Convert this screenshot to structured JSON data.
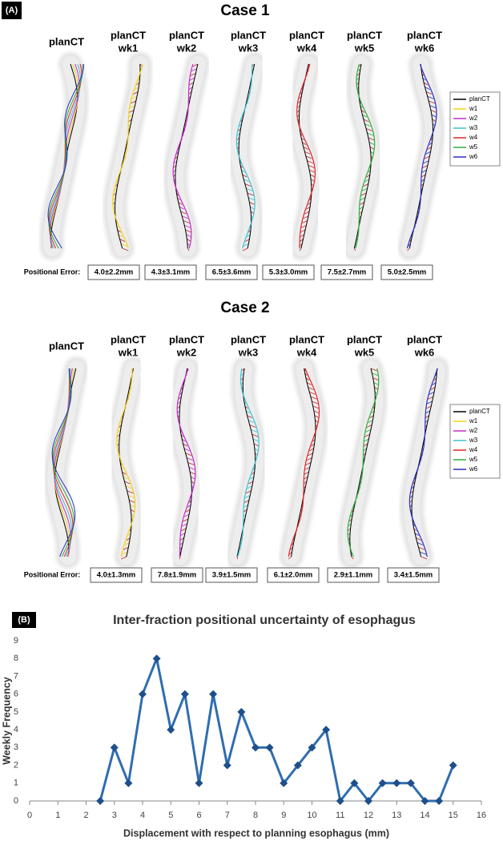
{
  "panel_a": {
    "label": "(A)",
    "case_1": {
      "title": "Case 1",
      "headers": [
        [
          "planCT"
        ],
        [
          "planCT",
          "wk1"
        ],
        [
          "planCT",
          "wk2"
        ],
        [
          "planCT",
          "wk3"
        ],
        [
          "planCT",
          "wk4"
        ],
        [
          "planCT",
          "wk5"
        ],
        [
          "planCT",
          "wk6"
        ]
      ],
      "legend": [
        {
          "name": "planCT",
          "color": "#000000"
        },
        {
          "name": "w1",
          "color": "#f2d21b"
        },
        {
          "name": "w2",
          "color": "#c42ac8"
        },
        {
          "name": "w3",
          "color": "#3cc2cf"
        },
        {
          "name": "w4",
          "color": "#e0262a"
        },
        {
          "name": "w5",
          "color": "#2fae3a"
        },
        {
          "name": "w6",
          "color": "#2a2ec0"
        }
      ],
      "error_label": "Positional Error:",
      "errors": [
        "4.0±2.2mm",
        "4.3±3.1mm",
        "6.5±3.6mm",
        "5.3±3.0mm",
        "7.5±2.7mm",
        "5.0±2.5mm"
      ]
    },
    "case_2": {
      "title": "Case 2",
      "headers": [
        [
          "planCT"
        ],
        [
          "planCT",
          "wk1"
        ],
        [
          "planCT",
          "wk2"
        ],
        [
          "planCT",
          "wk3"
        ],
        [
          "planCT",
          "wk4"
        ],
        [
          "planCT",
          "wk5"
        ],
        [
          "planCT",
          "wk6"
        ]
      ],
      "legend": [
        {
          "name": "planCT",
          "color": "#000000"
        },
        {
          "name": "w1",
          "color": "#f2d21b"
        },
        {
          "name": "w2",
          "color": "#c42ac8"
        },
        {
          "name": "w3",
          "color": "#3cc2cf"
        },
        {
          "name": "w4",
          "color": "#e0262a"
        },
        {
          "name": "w5",
          "color": "#2fae3a"
        },
        {
          "name": "w6",
          "color": "#2a2ec0"
        }
      ],
      "error_label": "Positional Error:",
      "errors": [
        "4.0±1.3mm",
        "7.8±1.9mm",
        "3.9±1.5mm",
        "6.1±2.0mm",
        "2.9±1.1mm",
        "3.4±1.5mm"
      ]
    }
  },
  "chart_data": {
    "type": "line",
    "panel_label": "(B)",
    "title": "Inter-fraction positional uncertainty of esophagus",
    "x_label": "Displacement with respect to planning esophagus (mm)",
    "y_label": "Weekly Frequency",
    "x": [
      2.5,
      3,
      3.5,
      4,
      4.5,
      5,
      5.5,
      6,
      6.5,
      7,
      7.5,
      8,
      8.5,
      9,
      9.5,
      10,
      10.5,
      11,
      11.5,
      12,
      12.5,
      13,
      13.5,
      14,
      14.5,
      15
    ],
    "values": [
      0,
      3,
      1,
      6,
      8,
      4,
      6,
      1,
      6,
      2,
      5,
      3,
      3,
      1,
      2,
      3,
      4,
      0,
      1,
      0,
      1,
      1,
      1,
      0,
      0,
      2
    ],
    "color": "#2f6db0",
    "xlim": [
      0,
      16
    ],
    "xticks": [
      0,
      1,
      2,
      3,
      4,
      5,
      6,
      7,
      8,
      9,
      10,
      11,
      12,
      13,
      14,
      15,
      16
    ],
    "ylim": [
      0,
      9
    ],
    "yticks": [
      0,
      1,
      2,
      3,
      4,
      5,
      6,
      7,
      8,
      9
    ],
    "grid": false
  }
}
